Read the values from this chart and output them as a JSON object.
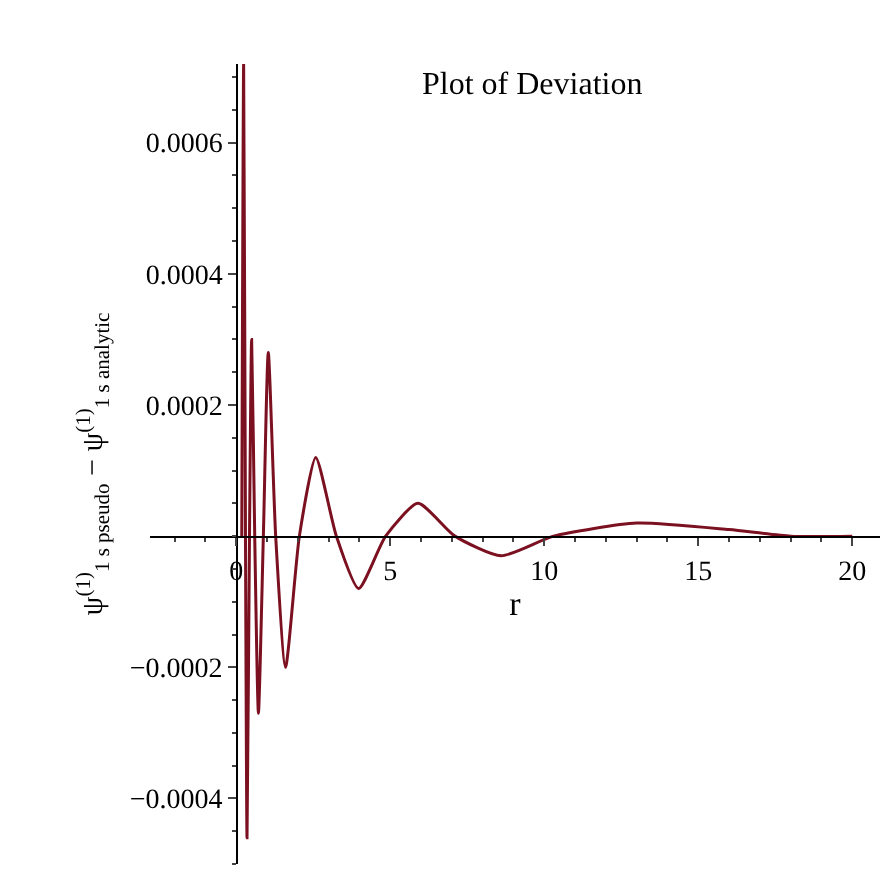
{
  "chart_data": {
    "type": "line",
    "title": "Plot of Deviation",
    "xlabel": "r",
    "ylabel": "ψ$^{(1)}$$_{1 s pseudo}$ − ψ$^{(1)}$$_{1 s analytic}$",
    "x": [
      0.18,
      0.24,
      0.3,
      0.35,
      0.43,
      0.5,
      0.6,
      0.72,
      0.88,
      1.04,
      1.28,
      1.6,
      2.05,
      2.58,
      3.25,
      3.97,
      4.85,
      5.9,
      7.1,
      8.6,
      10.3,
      13,
      16,
      18,
      20
    ],
    "series": [
      {
        "color": "#7b1020",
        "values": [
          0,
          0.00072,
          0,
          -0.00046,
          0,
          0.0003,
          0,
          -0.00027,
          0,
          0.00028,
          0,
          -0.0002,
          0,
          0.00012,
          0,
          -8e-05,
          0,
          5e-05,
          0,
          -3e-05,
          0,
          2e-05,
          1e-05,
          0,
          0
        ]
      }
    ],
    "xlim": [
      -2.8,
      20.9
    ],
    "ylim": [
      -0.0005,
      0.00072
    ],
    "xticks": [
      0,
      5,
      10,
      15,
      20
    ],
    "yticks": [
      {
        "value": -0.0004,
        "label": "−0.0004"
      },
      {
        "value": -0.0002,
        "label": "−0.0002"
      },
      0.0002,
      0.0004,
      0.0006
    ],
    "legend": false,
    "marker": "none",
    "line_style": "solid"
  }
}
